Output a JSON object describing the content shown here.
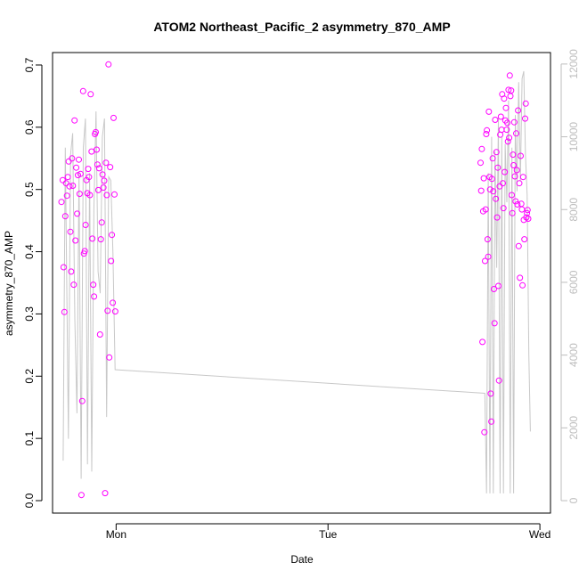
{
  "chart_data": {
    "type": "scatter",
    "title": "ATOM2 Northeast_Pacific_2 asymmetry_870_AMP",
    "xlabel": "Date",
    "ylabel": "asymmetry_870_AMP",
    "x_ticks": [
      "Mon",
      "Tue",
      "Wed"
    ],
    "xlim": [
      -0.3,
      2.05
    ],
    "ylim": [
      -0.02,
      0.72
    ],
    "y_ticks": [
      0.0,
      0.1,
      0.2,
      0.3,
      0.4,
      0.5,
      0.6,
      0.7
    ],
    "y2_ticks": [
      0,
      2000,
      4000,
      6000,
      8000,
      10000,
      12000
    ],
    "y2lim": [
      -342,
      12315
    ],
    "colors": {
      "points": "#ff00ff",
      "line": "#c8c8c8",
      "right_axis": "#bdbdbd"
    },
    "series": [
      {
        "type": "scatter",
        "axis": "left",
        "x": [
          -0.258,
          -0.252,
          -0.248,
          -0.244,
          -0.24,
          -0.236,
          -0.232,
          -0.228,
          -0.224,
          -0.22,
          -0.216,
          -0.212,
          -0.208,
          -0.204,
          -0.2,
          -0.196,
          -0.192,
          -0.188,
          -0.184,
          -0.18,
          -0.176,
          -0.172,
          -0.168,
          -0.164,
          -0.16,
          -0.156,
          -0.152,
          -0.148,
          -0.144,
          -0.14,
          -0.136,
          -0.132,
          -0.128,
          -0.124,
          -0.12,
          -0.116,
          -0.112,
          -0.108,
          -0.104,
          -0.1,
          -0.096,
          -0.092,
          -0.088,
          -0.084,
          -0.08,
          -0.076,
          -0.072,
          -0.068,
          -0.064,
          -0.06,
          -0.056,
          -0.052,
          -0.048,
          -0.044,
          -0.04,
          -0.036,
          -0.032,
          -0.028,
          -0.024,
          -0.02,
          -0.016,
          -0.012,
          -0.008,
          -0.004,
          1.72,
          1.723,
          1.726,
          1.729,
          1.732,
          1.735,
          1.738,
          1.741,
          1.744,
          1.747,
          1.75,
          1.753,
          1.756,
          1.759,
          1.762,
          1.765,
          1.768,
          1.771,
          1.774,
          1.777,
          1.78,
          1.783,
          1.786,
          1.789,
          1.792,
          1.795,
          1.798,
          1.801,
          1.804,
          1.807,
          1.81,
          1.813,
          1.816,
          1.819,
          1.822,
          1.825,
          1.828,
          1.831,
          1.834,
          1.837,
          1.84,
          1.843,
          1.846,
          1.849,
          1.852,
          1.855,
          1.858,
          1.861,
          1.864,
          1.867,
          1.87,
          1.873,
          1.876,
          1.879,
          1.882,
          1.885,
          1.888,
          1.891,
          1.894,
          1.897,
          1.9,
          1.903,
          1.906,
          1.909,
          1.912,
          1.915,
          1.918,
          1.921,
          1.924,
          1.927,
          1.93,
          1.933,
          1.936,
          1.939,
          1.942,
          1.945
        ],
        "y": [
          0.48,
          0.515,
          0.375,
          0.303,
          0.457,
          0.51,
          0.49,
          0.52,
          0.545,
          0.505,
          0.432,
          0.368,
          0.55,
          0.506,
          0.347,
          0.611,
          0.418,
          0.535,
          0.461,
          0.523,
          0.548,
          0.493,
          0.525,
          0.009,
          0.16,
          0.658,
          0.397,
          0.401,
          0.443,
          0.515,
          0.494,
          0.533,
          0.52,
          0.491,
          0.653,
          0.561,
          0.421,
          0.347,
          0.328,
          0.589,
          0.592,
          0.564,
          0.54,
          0.499,
          0.534,
          0.267,
          0.42,
          0.447,
          0.524,
          0.503,
          0.514,
          0.012,
          0.543,
          0.491,
          0.305,
          0.701,
          0.23,
          0.536,
          0.385,
          0.427,
          0.318,
          0.615,
          0.492,
          0.304,
          0.543,
          0.498,
          0.565,
          0.255,
          0.465,
          0.518,
          0.11,
          0.385,
          0.468,
          0.589,
          0.595,
          0.42,
          0.392,
          0.625,
          0.52,
          0.5,
          0.172,
          0.127,
          0.517,
          0.55,
          0.497,
          0.34,
          0.285,
          0.612,
          0.485,
          0.56,
          0.455,
          0.535,
          0.345,
          0.193,
          0.505,
          0.588,
          0.617,
          0.596,
          0.653,
          0.51,
          0.47,
          0.646,
          0.528,
          0.611,
          0.631,
          0.596,
          0.607,
          0.577,
          0.66,
          0.583,
          0.683,
          0.65,
          0.659,
          0.491,
          0.462,
          0.556,
          0.539,
          0.608,
          0.521,
          0.481,
          0.59,
          0.531,
          0.476,
          0.627,
          0.409,
          0.51,
          0.358,
          0.554,
          0.477,
          0.468,
          0.346,
          0.52,
          0.451,
          0.42,
          0.614,
          0.638,
          0.455,
          0.462,
          0.467,
          0.453
        ]
      },
      {
        "type": "line",
        "axis": "right",
        "x": [
          -0.25,
          -0.24,
          -0.225,
          -0.215,
          -0.205,
          -0.195,
          -0.185,
          -0.175,
          -0.165,
          -0.155,
          -0.145,
          -0.135,
          -0.125,
          -0.115,
          -0.105,
          -0.095,
          -0.085,
          -0.075,
          -0.065,
          -0.055,
          -0.045,
          -0.035,
          -0.025,
          -0.015,
          -0.005,
          1.74,
          1.748,
          1.756,
          1.764,
          1.772,
          1.78,
          1.788,
          1.796,
          1.804,
          1.812,
          1.82,
          1.828,
          1.836,
          1.844,
          1.852,
          1.86,
          1.868,
          1.876,
          1.884,
          1.892,
          1.9,
          1.908,
          1.916,
          1.924,
          1.932,
          1.94,
          1.948,
          1.955
        ],
        "y": [
          1100,
          9700,
          1700,
          9500,
          10100,
          5000,
          2400,
          9000,
          600,
          9700,
          10500,
          1000,
          9000,
          800,
          8000,
          10700,
          6300,
          5700,
          10000,
          10500,
          2300,
          8900,
          8800,
          6800,
          3600,
          2950,
          200,
          9000,
          200,
          10000,
          200,
          9600,
          6400,
          10500,
          200,
          10000,
          200,
          9800,
          8200,
          11000,
          200,
          9700,
          200,
          10600,
          8500,
          11500,
          8800,
          11600,
          11800,
          9500,
          8400,
          4000,
          1900
        ]
      }
    ]
  }
}
